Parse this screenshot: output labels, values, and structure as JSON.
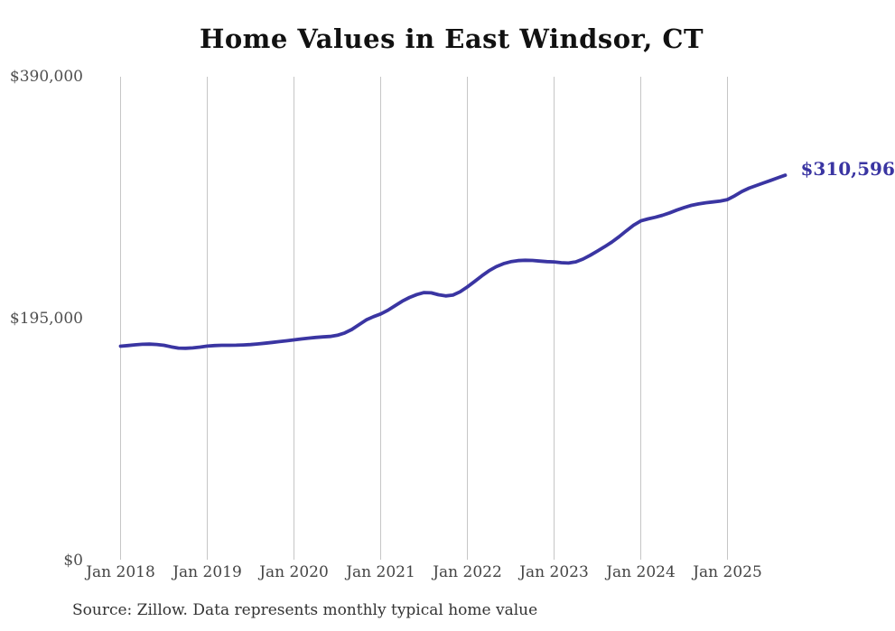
{
  "page": {
    "title": "Home Values in East Windsor, CT",
    "source_note": "Source: Zillow. Data represents monthly typical home value"
  },
  "chart_data": {
    "type": "line",
    "title": "Home Values in East Windsor, CT",
    "unit": "USD",
    "frequency": "monthly",
    "x_start": "Jan 2018",
    "x_end": "Sep 2025",
    "x_tick_labels": [
      "Jan 2018",
      "Jan 2019",
      "Jan 2020",
      "Jan 2021",
      "Jan 2022",
      "Jan 2023",
      "Jan 2024",
      "Jan 2025"
    ],
    "y_ticks": [
      {
        "value": 0,
        "label": "$0"
      },
      {
        "value": 195000,
        "label": "$195,000"
      },
      {
        "value": 390000,
        "label": "$390,000"
      }
    ],
    "ylim": [
      0,
      390000
    ],
    "grid": "vertical-yearly",
    "legend": "none",
    "line_color": "#3a35a2",
    "gridline_color": "#c6c6c6",
    "end_label": "$310,596",
    "end_value": 310596,
    "series": [
      {
        "name": "Typical home value",
        "values": [
          172800,
          173300,
          173900,
          174300,
          174500,
          174200,
          173500,
          172300,
          171300,
          171100,
          171400,
          172100,
          172900,
          173300,
          173500,
          173500,
          173600,
          173800,
          174100,
          174600,
          175200,
          175900,
          176500,
          177200,
          177900,
          178600,
          179300,
          179900,
          180300,
          180700,
          181600,
          183400,
          186300,
          190100,
          194000,
          196600,
          198800,
          201800,
          205500,
          209100,
          212100,
          214400,
          216000,
          215800,
          214300,
          213300,
          214000,
          216700,
          220600,
          225000,
          229500,
          233600,
          236900,
          239300,
          240900,
          241800,
          242100,
          241900,
          241400,
          241000,
          240800,
          240100,
          239800,
          240800,
          243000,
          246100,
          249500,
          253000,
          256800,
          261100,
          265800,
          270300,
          273800,
          275400,
          276700,
          278300,
          280300,
          282500,
          284600,
          286300,
          287500,
          288400,
          289100,
          289800,
          291000,
          294000,
          297500,
          300200,
          302300,
          304400,
          306500,
          308600,
          310596
        ]
      }
    ]
  }
}
